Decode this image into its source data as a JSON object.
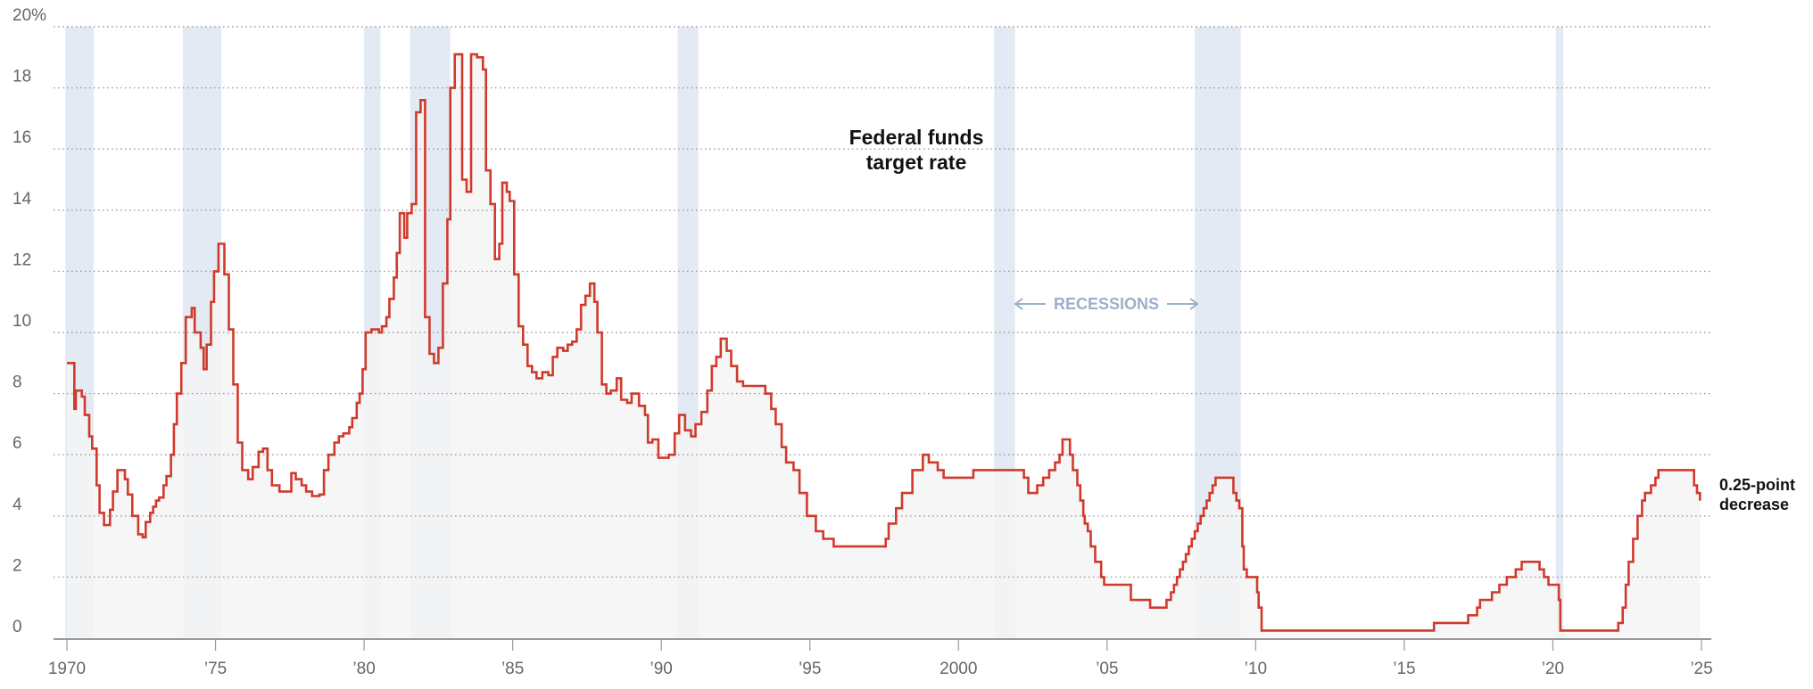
{
  "chart_data": {
    "type": "line",
    "title": "Federal funds target rate",
    "title_lines": [
      "Federal funds",
      "target rate"
    ],
    "xlabel": "",
    "ylabel": "",
    "xlim": [
      1970,
      2025
    ],
    "ylim": [
      0,
      20
    ],
    "grid": true,
    "y_ticks": [
      {
        "value": 0,
        "label": "0"
      },
      {
        "value": 2,
        "label": "2"
      },
      {
        "value": 4,
        "label": "4"
      },
      {
        "value": 6,
        "label": "6"
      },
      {
        "value": 8,
        "label": "8"
      },
      {
        "value": 10,
        "label": "10"
      },
      {
        "value": 12,
        "label": "12"
      },
      {
        "value": 14,
        "label": "14"
      },
      {
        "value": 16,
        "label": "16"
      },
      {
        "value": 18,
        "label": "18"
      },
      {
        "value": 20,
        "label": "20%"
      }
    ],
    "x_ticks": [
      {
        "value": 1970,
        "label": "1970"
      },
      {
        "value": 1975,
        "label": "’75"
      },
      {
        "value": 1980,
        "label": "’80"
      },
      {
        "value": 1985,
        "label": "’85"
      },
      {
        "value": 1990,
        "label": "’90"
      },
      {
        "value": 1995,
        "label": "’95"
      },
      {
        "value": 2000,
        "label": "2000"
      },
      {
        "value": 2005,
        "label": "’05"
      },
      {
        "value": 2010,
        "label": "’10"
      },
      {
        "value": 2015,
        "label": "’15"
      },
      {
        "value": 2020,
        "label": "’20"
      },
      {
        "value": 2025,
        "label": "’25"
      }
    ],
    "recessions": [
      [
        1969.95,
        1970.9
      ],
      [
        1973.9,
        1975.2
      ],
      [
        1980.0,
        1980.55
      ],
      [
        1981.55,
        1982.9
      ],
      [
        1990.55,
        1991.25
      ],
      [
        2001.2,
        2001.9
      ],
      [
        2007.95,
        2009.5
      ],
      [
        2020.1,
        2020.35
      ]
    ],
    "recession_label": "RECESSIONS",
    "annotation": {
      "lines": [
        "0.25-point",
        "decrease"
      ]
    },
    "colors": {
      "line": "#d03a2c",
      "fill": "#f5f5f5",
      "recession": "#e3eaf3",
      "grid": "#999999",
      "axis": "#999999"
    },
    "series": [
      {
        "name": "Federal funds target rate",
        "step": true,
        "points": [
          [
            1970.0,
            9.0
          ],
          [
            1970.25,
            7.5
          ],
          [
            1970.3,
            8.1
          ],
          [
            1970.5,
            7.9
          ],
          [
            1970.6,
            7.3
          ],
          [
            1970.75,
            6.6
          ],
          [
            1970.85,
            6.2
          ],
          [
            1971.0,
            5.0
          ],
          [
            1971.1,
            4.1
          ],
          [
            1971.25,
            3.7
          ],
          [
            1971.45,
            4.2
          ],
          [
            1971.55,
            4.8
          ],
          [
            1971.7,
            5.5
          ],
          [
            1971.95,
            5.2
          ],
          [
            1972.05,
            4.7
          ],
          [
            1972.2,
            4.0
          ],
          [
            1972.4,
            3.4
          ],
          [
            1972.55,
            3.3
          ],
          [
            1972.65,
            3.8
          ],
          [
            1972.8,
            4.1
          ],
          [
            1972.9,
            4.3
          ],
          [
            1973.0,
            4.5
          ],
          [
            1973.1,
            4.6
          ],
          [
            1973.25,
            5.0
          ],
          [
            1973.35,
            5.3
          ],
          [
            1973.5,
            6.0
          ],
          [
            1973.6,
            7.0
          ],
          [
            1973.7,
            8.0
          ],
          [
            1973.85,
            9.0
          ],
          [
            1974.0,
            10.5
          ],
          [
            1974.2,
            10.8
          ],
          [
            1974.3,
            10.0
          ],
          [
            1974.5,
            9.5
          ],
          [
            1974.6,
            8.8
          ],
          [
            1974.7,
            9.6
          ],
          [
            1974.85,
            11.0
          ],
          [
            1974.95,
            12.0
          ],
          [
            1975.1,
            12.9
          ],
          [
            1975.3,
            11.9
          ],
          [
            1975.45,
            10.1
          ],
          [
            1975.6,
            8.3
          ],
          [
            1975.75,
            6.4
          ],
          [
            1975.9,
            5.5
          ],
          [
            1976.1,
            5.2
          ],
          [
            1976.25,
            5.6
          ],
          [
            1976.45,
            6.1
          ],
          [
            1976.6,
            6.2
          ],
          [
            1976.75,
            5.5
          ],
          [
            1976.9,
            5.0
          ],
          [
            1977.15,
            4.8
          ],
          [
            1977.3,
            4.8
          ],
          [
            1977.55,
            5.4
          ],
          [
            1977.7,
            5.2
          ],
          [
            1977.9,
            5.0
          ],
          [
            1978.05,
            4.8
          ],
          [
            1978.25,
            4.65
          ],
          [
            1978.5,
            4.7
          ],
          [
            1978.65,
            5.5
          ],
          [
            1978.8,
            6.0
          ],
          [
            1979.0,
            6.4
          ],
          [
            1979.15,
            6.6
          ],
          [
            1979.3,
            6.7
          ],
          [
            1979.5,
            6.9
          ],
          [
            1979.6,
            7.2
          ],
          [
            1979.75,
            7.7
          ],
          [
            1979.85,
            8.0
          ],
          [
            1979.95,
            8.8
          ],
          [
            1980.05,
            10.0
          ],
          [
            1980.25,
            10.1
          ],
          [
            1980.5,
            10.0
          ],
          [
            1980.6,
            10.2
          ],
          [
            1980.75,
            10.5
          ],
          [
            1980.85,
            11.1
          ],
          [
            1981.0,
            11.8
          ],
          [
            1981.1,
            12.6
          ],
          [
            1981.2,
            13.9
          ],
          [
            1981.35,
            13.1
          ],
          [
            1981.45,
            13.9
          ],
          [
            1981.6,
            14.2
          ],
          [
            1981.75,
            17.2
          ],
          [
            1981.9,
            17.6
          ],
          [
            1982.05,
            10.5
          ],
          [
            1982.2,
            9.3
          ],
          [
            1982.35,
            9.0
          ],
          [
            1982.5,
            9.5
          ],
          [
            1982.65,
            11.6
          ],
          [
            1982.8,
            13.7
          ],
          [
            1982.9,
            18.0
          ],
          [
            1983.05,
            19.1
          ],
          [
            1983.3,
            15.0
          ],
          [
            1983.45,
            14.6
          ],
          [
            1983.6,
            19.1
          ],
          [
            1983.8,
            19.0
          ],
          [
            1984.0,
            18.6
          ],
          [
            1984.1,
            15.3
          ],
          [
            1984.25,
            14.2
          ],
          [
            1984.4,
            12.4
          ],
          [
            1984.55,
            12.9
          ],
          [
            1984.65,
            14.9
          ],
          [
            1984.8,
            14.6
          ],
          [
            1984.9,
            14.3
          ],
          [
            1985.05,
            11.9
          ],
          [
            1985.2,
            10.2
          ],
          [
            1985.35,
            9.6
          ],
          [
            1985.5,
            8.9
          ],
          [
            1985.65,
            8.7
          ],
          [
            1985.8,
            8.5
          ],
          [
            1986.0,
            8.7
          ],
          [
            1986.2,
            8.6
          ],
          [
            1986.35,
            9.2
          ],
          [
            1986.5,
            9.5
          ],
          [
            1986.7,
            9.4
          ],
          [
            1986.85,
            9.6
          ],
          [
            1987.0,
            9.7
          ],
          [
            1987.15,
            10.1
          ],
          [
            1987.3,
            10.9
          ],
          [
            1987.45,
            11.2
          ],
          [
            1987.6,
            11.6
          ],
          [
            1987.75,
            11.0
          ],
          [
            1987.85,
            10.0
          ],
          [
            1988.0,
            8.3
          ],
          [
            1988.15,
            8.0
          ],
          [
            1988.3,
            8.1
          ],
          [
            1988.5,
            8.5
          ],
          [
            1988.65,
            7.8
          ],
          [
            1988.85,
            7.7
          ],
          [
            1989.0,
            8.0
          ],
          [
            1989.25,
            7.6
          ],
          [
            1989.45,
            7.3
          ],
          [
            1989.55,
            6.4
          ],
          [
            1989.7,
            6.5
          ],
          [
            1989.9,
            5.9
          ],
          [
            1990.25,
            6.0
          ],
          [
            1990.45,
            6.7
          ],
          [
            1990.6,
            7.3
          ],
          [
            1990.8,
            6.8
          ],
          [
            1991.0,
            6.6
          ],
          [
            1991.15,
            7.0
          ],
          [
            1991.35,
            7.4
          ],
          [
            1991.55,
            8.1
          ],
          [
            1991.7,
            8.9
          ],
          [
            1991.85,
            9.2
          ],
          [
            1992.0,
            9.8
          ],
          [
            1992.2,
            9.4
          ],
          [
            1992.35,
            8.9
          ],
          [
            1992.55,
            8.4
          ],
          [
            1992.75,
            8.25
          ],
          [
            1993.5,
            8.0
          ],
          [
            1993.7,
            7.5
          ],
          [
            1993.85,
            7.0
          ],
          [
            1994.05,
            6.25
          ],
          [
            1994.2,
            5.75
          ],
          [
            1994.45,
            5.5
          ],
          [
            1994.65,
            4.75
          ],
          [
            1994.9,
            4.0
          ],
          [
            1995.2,
            3.5
          ],
          [
            1995.45,
            3.25
          ],
          [
            1995.8,
            3.0
          ],
          [
            1997.55,
            3.25
          ],
          [
            1997.65,
            3.75
          ],
          [
            1997.9,
            4.25
          ],
          [
            1998.1,
            4.75
          ],
          [
            1998.45,
            5.5
          ],
          [
            1998.8,
            6.0
          ],
          [
            1999.0,
            5.75
          ],
          [
            1999.3,
            5.5
          ],
          [
            1999.5,
            5.25
          ],
          [
            2000.5,
            5.5
          ],
          [
            2002.2,
            5.25
          ],
          [
            2002.35,
            4.75
          ],
          [
            2002.65,
            5.0
          ],
          [
            2002.85,
            5.25
          ],
          [
            2003.05,
            5.5
          ],
          [
            2003.25,
            5.75
          ],
          [
            2003.4,
            6.0
          ],
          [
            2003.5,
            6.5
          ],
          [
            2003.75,
            6.0
          ],
          [
            2003.85,
            5.5
          ],
          [
            2004.0,
            5.0
          ],
          [
            2004.1,
            4.5
          ],
          [
            2004.2,
            4.0
          ],
          [
            2004.25,
            3.75
          ],
          [
            2004.35,
            3.5
          ],
          [
            2004.45,
            3.0
          ],
          [
            2004.6,
            2.5
          ],
          [
            2004.8,
            2.0
          ],
          [
            2004.9,
            1.75
          ],
          [
            2005.8,
            1.25
          ],
          [
            2006.45,
            1.0
          ],
          [
            2007.0,
            1.25
          ],
          [
            2007.15,
            1.5
          ],
          [
            2007.25,
            1.75
          ],
          [
            2007.35,
            2.0
          ],
          [
            2007.45,
            2.25
          ],
          [
            2007.55,
            2.5
          ],
          [
            2007.65,
            2.75
          ],
          [
            2007.75,
            3.0
          ],
          [
            2007.85,
            3.25
          ],
          [
            2007.95,
            3.5
          ],
          [
            2008.05,
            3.75
          ],
          [
            2008.15,
            4.0
          ],
          [
            2008.25,
            4.25
          ],
          [
            2008.35,
            4.5
          ],
          [
            2008.45,
            4.75
          ],
          [
            2008.55,
            5.0
          ],
          [
            2008.65,
            5.25
          ],
          [
            2009.2,
            5.25
          ],
          [
            2009.25,
            4.75
          ],
          [
            2009.35,
            4.5
          ],
          [
            2009.45,
            4.25
          ],
          [
            2009.55,
            3.0
          ],
          [
            2009.6,
            2.25
          ],
          [
            2009.7,
            2.0
          ],
          [
            2010.05,
            1.5
          ],
          [
            2010.1,
            1.0
          ],
          [
            2010.2,
            0.25
          ],
          [
            2015.95,
            0.25
          ],
          [
            2016.0,
            0.5
          ],
          [
            2016.95,
            0.5
          ],
          [
            2017.15,
            0.75
          ],
          [
            2017.45,
            1.0
          ],
          [
            2017.55,
            1.25
          ],
          [
            2017.95,
            1.5
          ],
          [
            2018.2,
            1.75
          ],
          [
            2018.45,
            2.0
          ],
          [
            2018.75,
            2.25
          ],
          [
            2018.95,
            2.5
          ],
          [
            2019.55,
            2.25
          ],
          [
            2019.7,
            2.0
          ],
          [
            2019.85,
            1.75
          ],
          [
            2020.2,
            1.25
          ],
          [
            2020.25,
            0.25
          ],
          [
            2022.2,
            0.5
          ],
          [
            2022.35,
            1.0
          ],
          [
            2022.45,
            1.75
          ],
          [
            2022.55,
            2.5
          ],
          [
            2022.7,
            3.25
          ],
          [
            2022.85,
            4.0
          ],
          [
            2023.0,
            4.5
          ],
          [
            2023.1,
            4.75
          ],
          [
            2023.3,
            5.0
          ],
          [
            2023.45,
            5.25
          ],
          [
            2023.55,
            5.5
          ],
          [
            2024.7,
            5.5
          ],
          [
            2024.75,
            5.0
          ],
          [
            2024.85,
            4.75
          ],
          [
            2024.95,
            4.5
          ]
        ]
      }
    ]
  }
}
